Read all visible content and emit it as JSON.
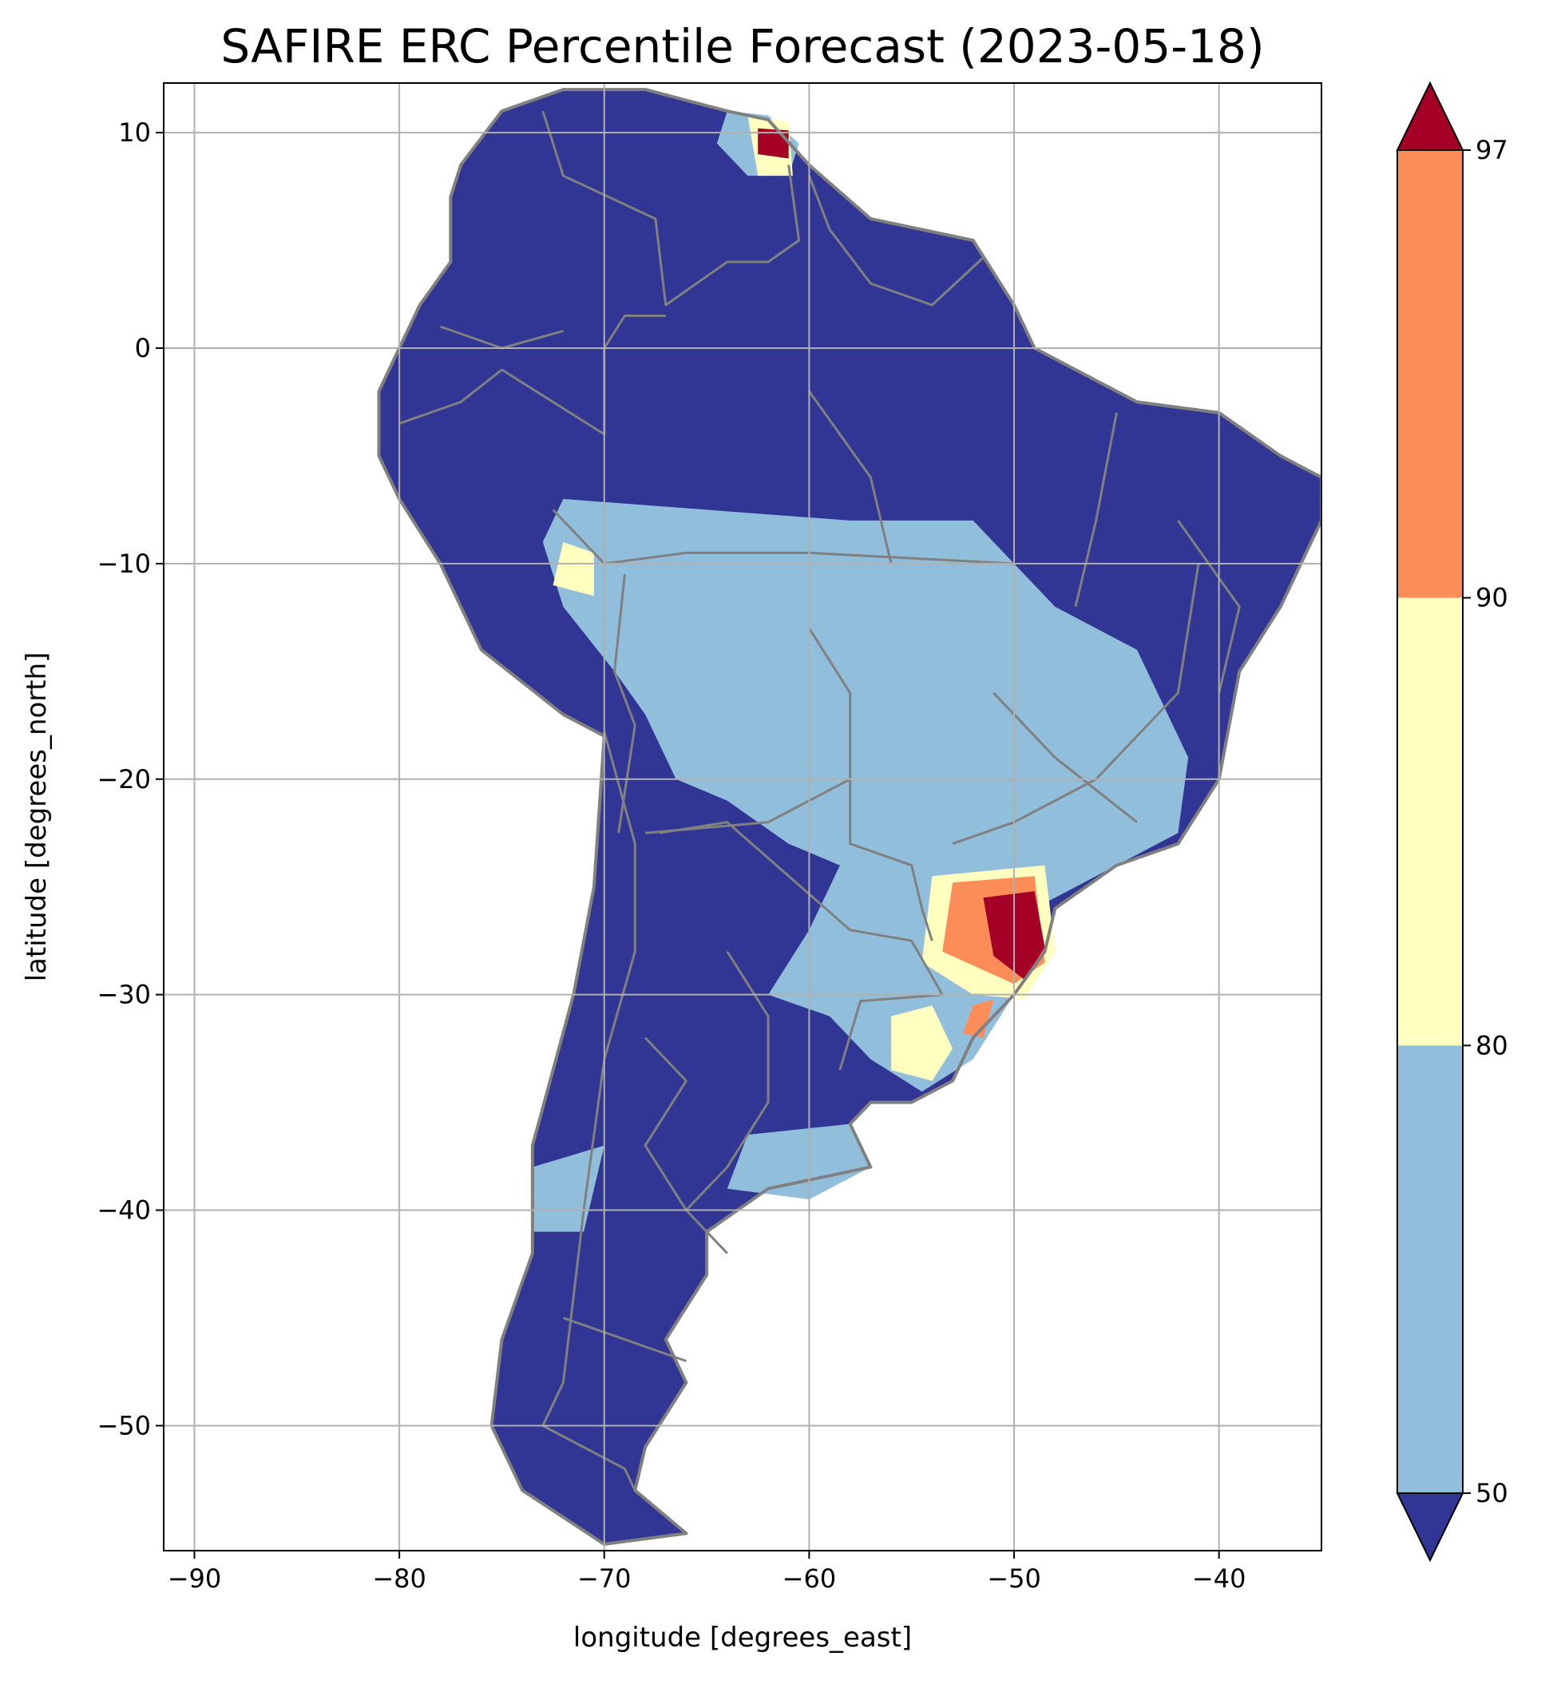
{
  "title": "SAFIRE ERC Percentile Forecast (2023-05-18)",
  "axes": {
    "xlabel": "longitude [degrees_east]",
    "ylabel": "latitude [degrees_north]",
    "xlim": [
      -91.5,
      -35
    ],
    "ylim": [
      -55.8,
      12.3
    ],
    "x_ticks": [
      -90,
      -80,
      -70,
      -60,
      -50,
      -40
    ],
    "y_ticks": [
      10,
      0,
      -10,
      -20,
      -30,
      -40,
      -50
    ],
    "x_tick_labels": [
      "−90",
      "−80",
      "−70",
      "−60",
      "−50",
      "−40"
    ],
    "y_tick_labels": [
      "10",
      "0",
      "−10",
      "−20",
      "−30",
      "−40",
      "−50"
    ],
    "grid": true
  },
  "colorbar": {
    "levels": [
      50,
      80,
      90,
      97
    ],
    "level_labels": [
      "50",
      "80",
      "90",
      "97"
    ],
    "extend": "both",
    "colors": {
      "below_50": "#313695",
      "50_80": "#91bfdb",
      "80_90": "#ffffbf",
      "90_97": "#fc8d59",
      "above_97": "#a50026"
    }
  },
  "colors": {
    "boundary": "#808080",
    "grid": "#b0b0b0",
    "background": "#ffffff"
  },
  "chart_data": {
    "type": "heatmap",
    "title": "SAFIRE ERC Percentile Forecast (2023-05-18)",
    "xlabel": "longitude [degrees_east]",
    "ylabel": "latitude [degrees_north]",
    "xlim": [
      -91.5,
      -35
    ],
    "ylim": [
      -55.8,
      12.3
    ],
    "grid": true,
    "colorbar_levels": [
      50,
      80,
      90,
      97
    ],
    "extend": "both",
    "continent": [
      [
        -77,
        8.5
      ],
      [
        -75,
        11
      ],
      [
        -72,
        12
      ],
      [
        -68,
        12
      ],
      [
        -64,
        11
      ],
      [
        -62,
        10.6
      ],
      [
        -60,
        8.5
      ],
      [
        -57,
        6
      ],
      [
        -52,
        5
      ],
      [
        -50,
        2
      ],
      [
        -49,
        0
      ],
      [
        -47,
        -1
      ],
      [
        -44,
        -2.5
      ],
      [
        -40,
        -3
      ],
      [
        -37,
        -5
      ],
      [
        -35,
        -6
      ],
      [
        -35,
        -8
      ],
      [
        -37,
        -12
      ],
      [
        -39,
        -15
      ],
      [
        -40,
        -20
      ],
      [
        -42,
        -23
      ],
      [
        -45,
        -24
      ],
      [
        -48,
        -26
      ],
      [
        -48.5,
        -28
      ],
      [
        -50,
        -30
      ],
      [
        -52,
        -32
      ],
      [
        -53,
        -34
      ],
      [
        -55,
        -35
      ],
      [
        -57,
        -35
      ],
      [
        -58,
        -36
      ],
      [
        -57,
        -38
      ],
      [
        -62,
        -39
      ],
      [
        -65,
        -41
      ],
      [
        -65,
        -43
      ],
      [
        -67,
        -46
      ],
      [
        -66,
        -48
      ],
      [
        -68,
        -51
      ],
      [
        -68.5,
        -53
      ],
      [
        -66,
        -55
      ],
      [
        -70,
        -55.5
      ],
      [
        -74,
        -53
      ],
      [
        -75.5,
        -50
      ],
      [
        -75,
        -46
      ],
      [
        -73.5,
        -42
      ],
      [
        -73.5,
        -37
      ],
      [
        -71.5,
        -30
      ],
      [
        -70.5,
        -25
      ],
      [
        -70,
        -18
      ],
      [
        -72,
        -17
      ],
      [
        -76,
        -14
      ],
      [
        -78,
        -10
      ],
      [
        -80,
        -7
      ],
      [
        -81,
        -5
      ],
      [
        -81,
        -2
      ],
      [
        -80,
        0
      ],
      [
        -79,
        2
      ],
      [
        -77.5,
        4
      ],
      [
        -77.5,
        7
      ]
    ],
    "zones": [
      {
        "category": "50-80",
        "coords": [
          [
            -72,
            -7
          ],
          [
            -65,
            -7.5
          ],
          [
            -58,
            -8
          ],
          [
            -52,
            -8
          ],
          [
            -48,
            -12
          ],
          [
            -44,
            -14
          ],
          [
            -41.5,
            -19
          ],
          [
            -42,
            -22.5
          ],
          [
            -46,
            -24.5
          ],
          [
            -49,
            -26
          ],
          [
            -50,
            -30
          ],
          [
            -52,
            -33
          ],
          [
            -54.5,
            -34.5
          ],
          [
            -57,
            -33
          ],
          [
            -59,
            -31
          ],
          [
            -62,
            -30
          ],
          [
            -60,
            -27
          ],
          [
            -58.5,
            -24
          ],
          [
            -61,
            -23
          ],
          [
            -64,
            -21
          ],
          [
            -66.5,
            -20
          ],
          [
            -68,
            -17
          ],
          [
            -69.5,
            -15
          ],
          [
            -72,
            -12
          ],
          [
            -73,
            -9
          ]
        ]
      },
      {
        "category": "50-80",
        "coords": [
          [
            -64,
            11
          ],
          [
            -62,
            10.8
          ],
          [
            -60.5,
            9.5
          ],
          [
            -61,
            8
          ],
          [
            -63,
            8
          ],
          [
            -64.5,
            9.5
          ]
        ]
      },
      {
        "category": "50-80",
        "coords": [
          [
            -73.5,
            -38
          ],
          [
            -70,
            -37
          ],
          [
            -71,
            -41
          ],
          [
            -73.5,
            -41
          ]
        ]
      },
      {
        "category": "50-80",
        "coords": [
          [
            -63,
            -36.5
          ],
          [
            -58,
            -36
          ],
          [
            -57,
            -38
          ],
          [
            -60,
            -39.5
          ],
          [
            -64,
            -39
          ]
        ]
      },
      {
        "category": "80-90",
        "coords": [
          [
            -72,
            -9
          ],
          [
            -70.5,
            -9.5
          ],
          [
            -70.5,
            -11.5
          ],
          [
            -72.5,
            -11
          ]
        ]
      },
      {
        "category": "80-90",
        "coords": [
          [
            -63,
            10.8
          ],
          [
            -61,
            10.5
          ],
          [
            -60.8,
            8
          ],
          [
            -62.5,
            8
          ]
        ]
      },
      {
        "category": "80-90",
        "coords": [
          [
            -56,
            -31
          ],
          [
            -54,
            -30.5
          ],
          [
            -53,
            -32.5
          ],
          [
            -54,
            -34
          ],
          [
            -56,
            -33.5
          ]
        ]
      },
      {
        "category": "80-90",
        "coords": [
          [
            -54,
            -24.5
          ],
          [
            -48.5,
            -24
          ],
          [
            -48,
            -28
          ],
          [
            -49.5,
            -30.2
          ],
          [
            -52,
            -30
          ],
          [
            -54.5,
            -28.5
          ]
        ]
      },
      {
        "category": "90-97",
        "coords": [
          [
            -53,
            -24.8
          ],
          [
            -49,
            -24.5
          ],
          [
            -48.5,
            -28.5
          ],
          [
            -50,
            -29.5
          ],
          [
            -53.5,
            -28
          ]
        ]
      },
      {
        "category": "90-97",
        "coords": [
          [
            -52,
            -30.5
          ],
          [
            -51,
            -30.2
          ],
          [
            -51.5,
            -32
          ],
          [
            -52.5,
            -31.8
          ]
        ]
      },
      {
        "category": "above-97",
        "coords": [
          [
            -51.5,
            -25.5
          ],
          [
            -49,
            -25.2
          ],
          [
            -48.5,
            -27.8
          ],
          [
            -49.5,
            -29.3
          ],
          [
            -51,
            -28.2
          ]
        ]
      },
      {
        "category": "above-97",
        "coords": [
          [
            -62.5,
            10.2
          ],
          [
            -61,
            10.1
          ],
          [
            -61,
            8.8
          ],
          [
            -62.5,
            9
          ]
        ]
      }
    ],
    "borders": [
      [
        [
          -72.5,
          -7.5
        ],
        [
          -70,
          -10
        ],
        [
          -66,
          -9.5
        ],
        [
          -60,
          -9.5
        ],
        [
          -50,
          -10
        ]
      ],
      [
        [
          -69,
          -10.5
        ],
        [
          -69.5,
          -15
        ],
        [
          -68.5,
          -17.5
        ],
        [
          -69.3,
          -22.5
        ]
      ],
      [
        [
          -60,
          -13
        ],
        [
          -58,
          -16
        ],
        [
          -58,
          -20
        ],
        [
          -62,
          -22
        ],
        [
          -68,
          -22.5
        ]
      ],
      [
        [
          -58,
          -20
        ],
        [
          -58,
          -23
        ],
        [
          -55,
          -24
        ],
        [
          -54.5,
          -26
        ],
        [
          -54,
          -27.5
        ]
      ],
      [
        [
          -67.3,
          -22.5
        ],
        [
          -64,
          -22
        ],
        [
          -58,
          -27
        ],
        [
          -55,
          -27.5
        ],
        [
          -53.5,
          -30
        ],
        [
          -57.5,
          -30.3
        ],
        [
          -58.5,
          -33.5
        ]
      ],
      [
        [
          -70,
          -17.8
        ],
        [
          -68.5,
          -23
        ],
        [
          -68.5,
          -28
        ],
        [
          -70,
          -33
        ],
        [
          -71,
          -40
        ],
        [
          -71.5,
          -44
        ],
        [
          -72,
          -48
        ],
        [
          -73,
          -50
        ],
        [
          -69,
          -52
        ],
        [
          -68.5,
          -53
        ]
      ],
      [
        [
          -75,
          -1
        ],
        [
          -70,
          -4
        ],
        [
          -70,
          0
        ],
        [
          -69,
          1.5
        ],
        [
          -67,
          1.5
        ]
      ],
      [
        [
          -73,
          11
        ],
        [
          -72,
          8
        ],
        [
          -67.5,
          6
        ],
        [
          -67,
          2
        ],
        [
          -64,
          4
        ],
        [
          -62,
          4
        ],
        [
          -60.5,
          5
        ],
        [
          -61,
          8.5
        ]
      ],
      [
        [
          -60,
          8
        ],
        [
          -59,
          5.5
        ],
        [
          -57,
          3
        ],
        [
          -54,
          2
        ],
        [
          -51.5,
          4.2
        ]
      ],
      [
        [
          -80,
          -3.5
        ],
        [
          -77,
          -2.5
        ],
        [
          -75,
          -1
        ]
      ],
      [
        [
          -78,
          1
        ],
        [
          -75,
          0
        ],
        [
          -72,
          0.8
        ]
      ],
      [
        [
          -60,
          -2
        ],
        [
          -57,
          -6
        ],
        [
          -56,
          -10
        ]
      ],
      [
        [
          -45,
          -3
        ],
        [
          -46,
          -8
        ],
        [
          -47,
          -12
        ]
      ],
      [
        [
          -41,
          -10
        ],
        [
          -42,
          -16
        ],
        [
          -46,
          -20
        ],
        [
          -50,
          -22
        ],
        [
          -53,
          -23
        ]
      ],
      [
        [
          -42,
          -8
        ],
        [
          -39,
          -12
        ],
        [
          -40,
          -16
        ]
      ],
      [
        [
          -51,
          -16
        ],
        [
          -48,
          -19
        ],
        [
          -44,
          -22
        ]
      ],
      [
        [
          -64,
          -28
        ],
        [
          -62,
          -31
        ],
        [
          -62,
          -35
        ],
        [
          -64,
          -38
        ],
        [
          -66,
          -40
        ]
      ],
      [
        [
          -68,
          -32
        ],
        [
          -66,
          -34
        ],
        [
          -68,
          -37
        ],
        [
          -66,
          -40
        ],
        [
          -64,
          -42
        ]
      ],
      [
        [
          -72,
          -45
        ],
        [
          -69,
          -46
        ],
        [
          -66,
          -47
        ]
      ]
    ]
  }
}
